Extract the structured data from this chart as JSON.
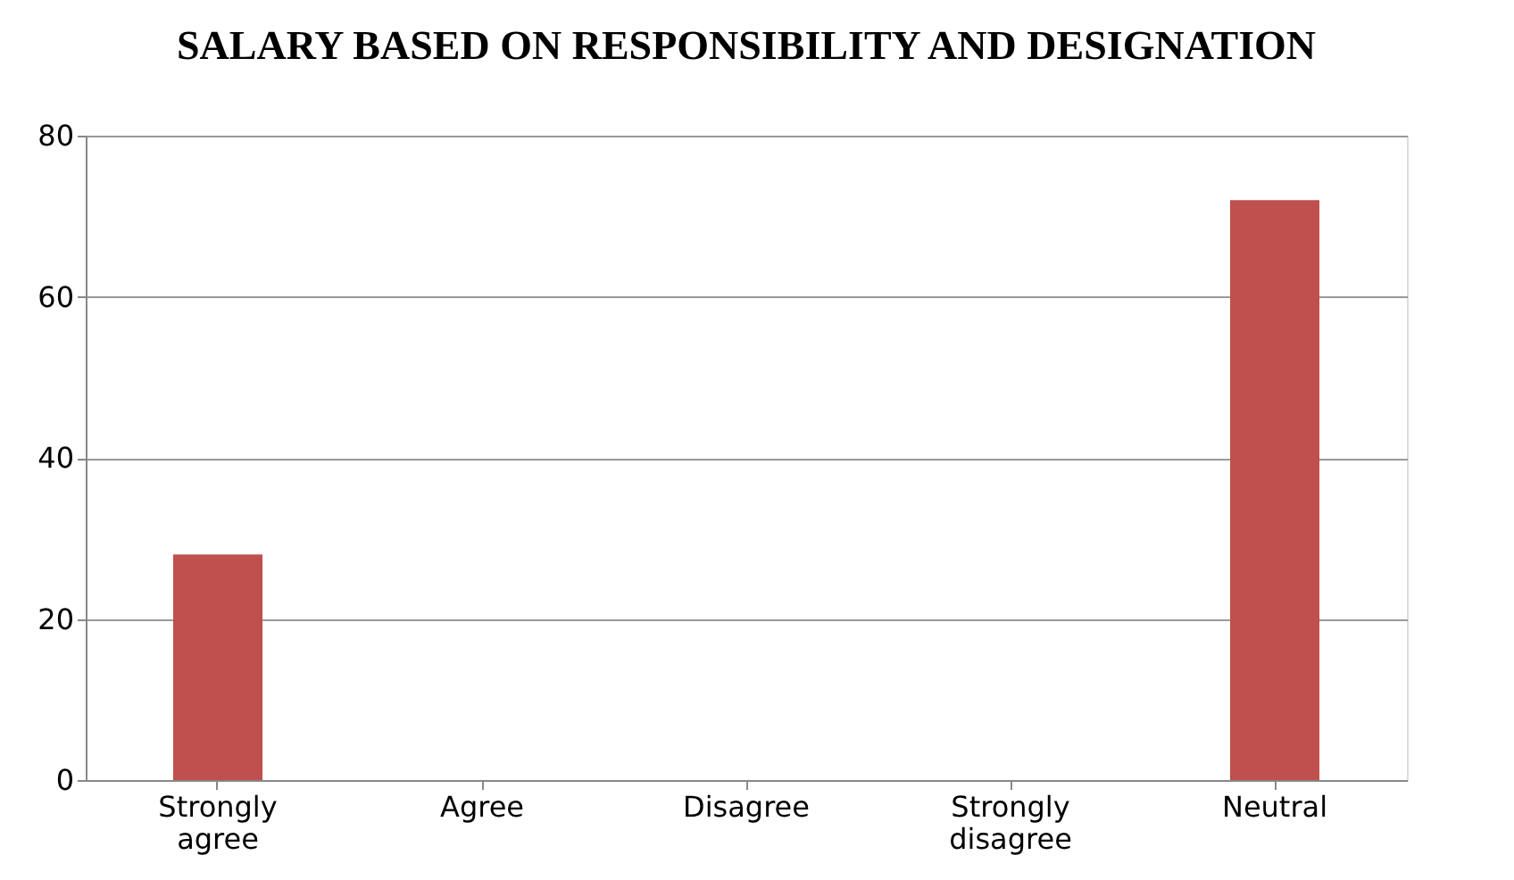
{
  "chart_data": {
    "type": "bar",
    "title": "SALARY BASED ON RESPONSIBILITY AND DESIGNATION",
    "categories": [
      "Strongly agree",
      "Agree",
      "Disagree",
      "Strongly disagree",
      "Neutral"
    ],
    "values": [
      28,
      0,
      0,
      0,
      72
    ],
    "color": "#c0504d",
    "ylim": [
      0,
      80
    ],
    "yticks": [
      0,
      20,
      40,
      60,
      80
    ],
    "grid": "y"
  }
}
